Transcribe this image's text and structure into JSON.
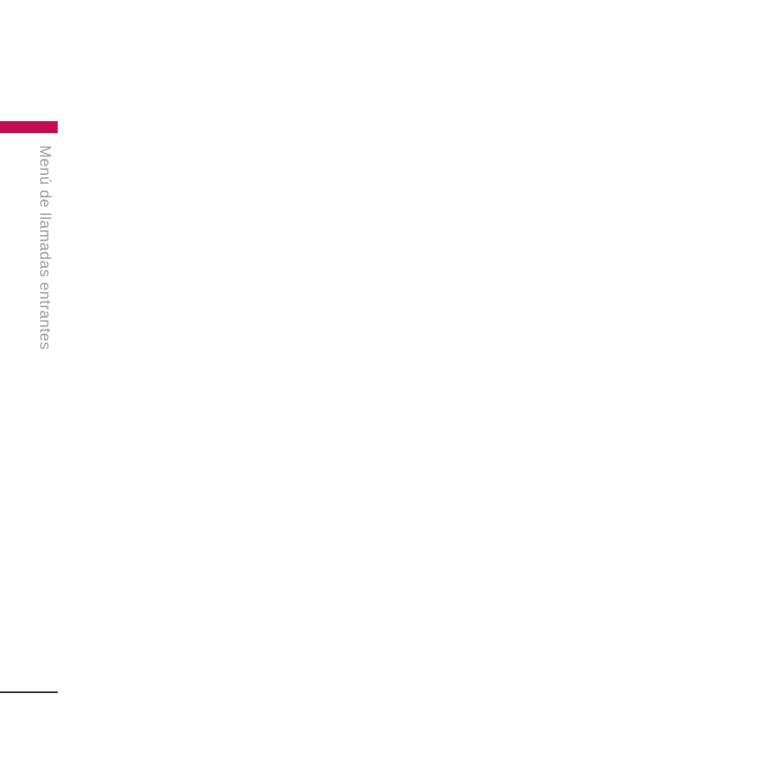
{
  "page": {
    "background_color": "#ffffff",
    "sidebar_tab": {
      "accent_color": "#C60C51",
      "title": "Menú de llamadas entrantes",
      "title_color": "#9B999A"
    },
    "footer": {
      "rule_color": "#231F20"
    }
  }
}
